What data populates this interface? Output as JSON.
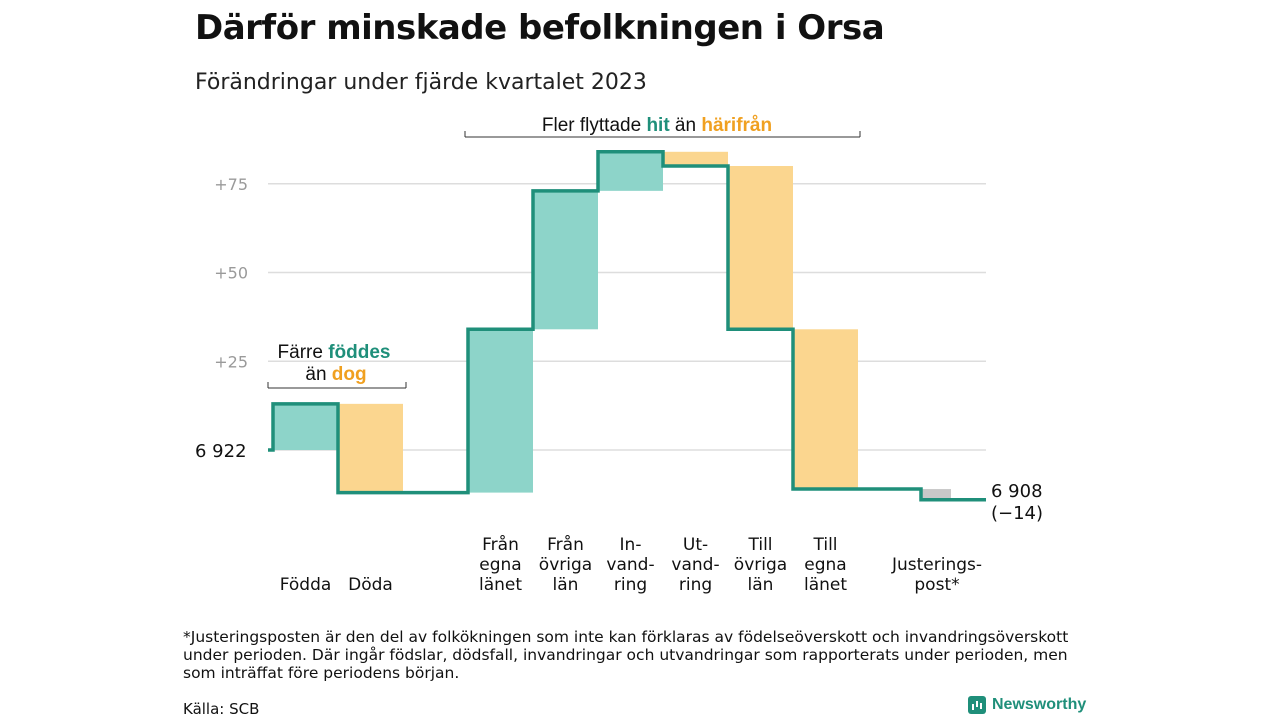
{
  "header": {
    "title": "Därför minskade befolkningen i Orsa",
    "subtitle": "Förändringar under fjärde kvartalet 2023"
  },
  "chart_data": {
    "type": "waterfall",
    "baseline": 0,
    "ylim": [
      -20,
      85
    ],
    "yticks": [
      {
        "value": 0,
        "label": ""
      },
      {
        "value": 25,
        "label": "+25"
      },
      {
        "value": 50,
        "label": "+50"
      },
      {
        "value": 75,
        "label": "+75"
      }
    ],
    "start_label": "6  922",
    "end_label": [
      "6 908",
      "(−14)"
    ],
    "steps": [
      {
        "category": [
          "Födda"
        ],
        "value": 13
      },
      {
        "category": [
          "Döda"
        ],
        "value": -25
      },
      {
        "category": [
          "Från",
          "egna",
          "länet"
        ],
        "value": 46
      },
      {
        "category": [
          "Från",
          "övriga",
          "län"
        ],
        "value": 39
      },
      {
        "category": [
          "In-",
          "vand-",
          "ring"
        ],
        "value": 11
      },
      {
        "category": [
          "Ut-",
          "vand-",
          "ring"
        ],
        "value": -4
      },
      {
        "category": [
          "Till",
          "övriga",
          "län"
        ],
        "value": -46
      },
      {
        "category": [
          "Till",
          "egna",
          "länet"
        ],
        "value": -45
      },
      {
        "category": [
          "Justerings-",
          "post*"
        ],
        "value": -3
      }
    ],
    "colors": {
      "positive": "#8dd4c9",
      "negative": "#fbd68f",
      "adjustment": "#c8c8c8",
      "line": "#1f8f7a",
      "grid": "#dddddd",
      "accent_hit": "#1f8f7a",
      "accent_harifran": "#f0a020"
    },
    "annotations": {
      "births_deaths": {
        "line1_plain": "Färre",
        "line1_accent": "föddes",
        "line2_plain": "än",
        "line2_accent": "dog"
      },
      "migration": {
        "plain1": "Fler flyttade",
        "accent1": "hit",
        "plain2": "än",
        "accent2": "härifrån"
      }
    }
  },
  "footer": {
    "footnote": "*Justeringsposten är den del av folkökningen som inte kan förklaras av födelseöverskott och invandringsöverskott under perioden. Där ingår födslar, dödsfall, invandringar och utvandringar som rapporterats under perioden, men som inträffat före periodens början.",
    "source": "Källa: SCB",
    "brand": "Newsworthy"
  }
}
